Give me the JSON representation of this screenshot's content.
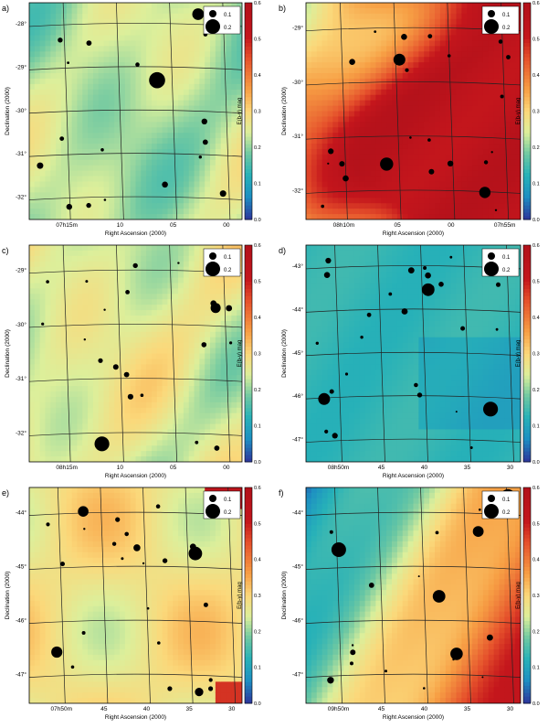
{
  "figure": {
    "xlabel": "Right Ascension (2000)",
    "ylabel": "Declination (2000)",
    "colorbar_label": "E(b-y) mag",
    "colorbar_ticks": [
      "0.0",
      "0.1",
      "0.2",
      "0.3",
      "0.4",
      "0.5",
      "0.6"
    ],
    "legend": [
      {
        "label": "0.1",
        "value": 0.1
      },
      {
        "label": "0.2",
        "value": 0.2
      }
    ],
    "colors": {
      "low": "#2b3aa0",
      "mid_low": "#1fa4c4",
      "mid": "#5cc3a5",
      "mid_high": "#e6f09a",
      "high": "#f8b25a",
      "max": "#c4161c"
    }
  },
  "chart_data": [
    {
      "panel": "a",
      "label": "a)",
      "type": "heatmap",
      "title": "",
      "xlabel": "Right Ascension (2000)",
      "ylabel": "Declination (2000)",
      "x_ticks": [
        "07h15m",
        "10",
        "05",
        "00"
      ],
      "y_ticks": [
        "-28°",
        "-29°",
        "-30°",
        "-31°",
        "-32°"
      ],
      "clim": [
        0,
        0.6
      ],
      "typical_ebv": 0.22
    },
    {
      "panel": "b",
      "label": "b)",
      "type": "heatmap",
      "title": "",
      "xlabel": "Right Ascension (2000)",
      "ylabel": "Declination (2000)",
      "x_ticks": [
        "08h10m",
        "05",
        "00",
        "07h55m"
      ],
      "y_ticks": [
        "-29°",
        "-30°",
        "-31°",
        "-32°"
      ],
      "clim": [
        0,
        0.6
      ],
      "typical_ebv": 0.55
    },
    {
      "panel": "c",
      "label": "c)",
      "type": "heatmap",
      "title": "",
      "xlabel": "Right Ascension (2000)",
      "ylabel": "Declination (2000)",
      "x_ticks": [
        "08h15m",
        "10",
        "05",
        "00"
      ],
      "y_ticks": [
        "-29°",
        "-30°",
        "-31°",
        "-32°"
      ],
      "clim": [
        0,
        0.6
      ],
      "typical_ebv": 0.25
    },
    {
      "panel": "d",
      "label": "d)",
      "type": "heatmap",
      "title": "",
      "xlabel": "Right Ascension (2000)",
      "ylabel": "Declination (2000)",
      "x_ticks": [
        "08h50m",
        "45",
        "40",
        "35",
        "30"
      ],
      "y_ticks": [
        "-43°",
        "-44°",
        "-45°",
        "-46°",
        "-47°"
      ],
      "clim": [
        0,
        0.6
      ],
      "typical_ebv": 0.13
    },
    {
      "panel": "e",
      "label": "e)",
      "type": "heatmap",
      "title": "",
      "xlabel": "Right Ascension (2000)",
      "ylabel": "Declination (2000)",
      "x_ticks": [
        "07h50m",
        "45",
        "40",
        "35",
        "30"
      ],
      "y_ticks": [
        "-44°",
        "-45°",
        "-46°",
        "-47°"
      ],
      "clim": [
        0,
        0.6
      ],
      "typical_ebv": 0.28
    },
    {
      "panel": "f",
      "label": "f)",
      "type": "heatmap",
      "title": "",
      "xlabel": "Right Ascension (2000)",
      "ylabel": "Declination (2000)",
      "x_ticks": [
        "09h50m",
        "45",
        "40",
        "35",
        "30"
      ],
      "y_ticks": [
        "-44°",
        "-45°",
        "-46°",
        "-47°"
      ],
      "clim": [
        0,
        0.6
      ],
      "typical_ebv": 0.45
    }
  ]
}
